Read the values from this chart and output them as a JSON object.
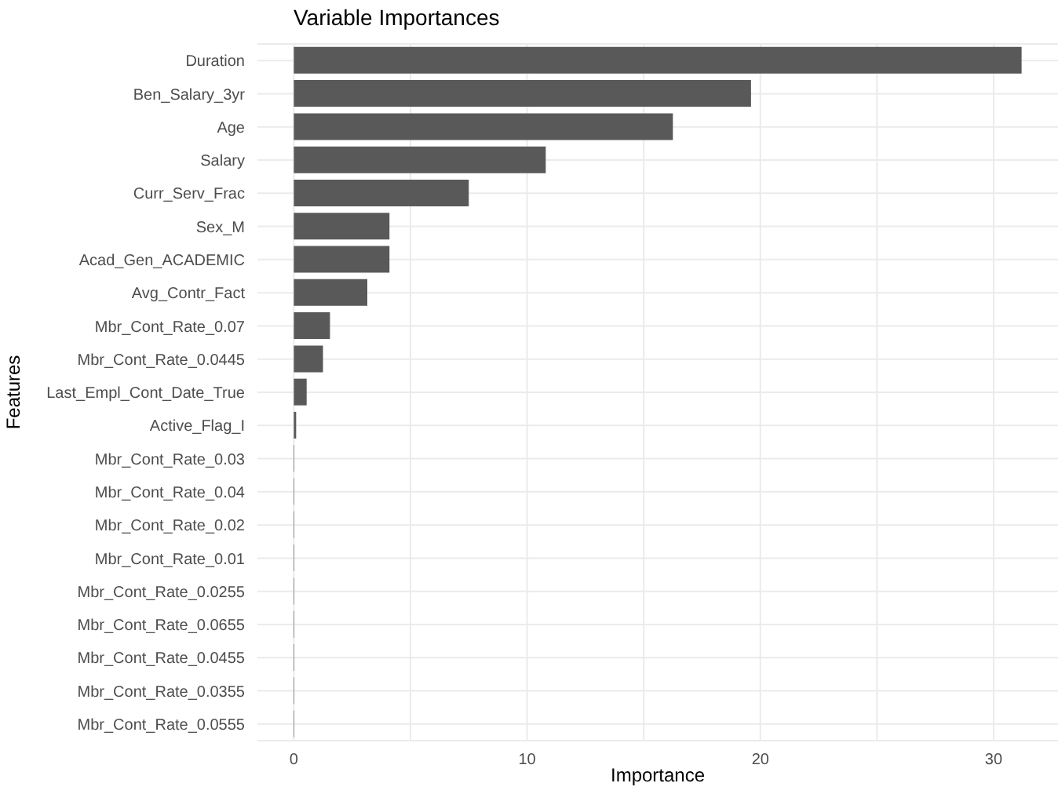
{
  "chart_data": {
    "type": "bar",
    "orientation": "horizontal",
    "title": "Variable Importances",
    "xlabel": "Importance",
    "ylabel": "Features",
    "categories": [
      "Duration",
      "Ben_Salary_3yr",
      "Age",
      "Salary",
      "Curr_Serv_Frac",
      "Sex_M",
      "Acad_Gen_ACADEMIC",
      "Avg_Contr_Fact",
      "Mbr_Cont_Rate_0.07",
      "Mbr_Cont_Rate_0.0445",
      "Last_Empl_Cont_Date_True",
      "Active_Flag_I",
      "Mbr_Cont_Rate_0.03",
      "Mbr_Cont_Rate_0.04",
      "Mbr_Cont_Rate_0.02",
      "Mbr_Cont_Rate_0.01",
      "Mbr_Cont_Rate_0.0255",
      "Mbr_Cont_Rate_0.0655",
      "Mbr_Cont_Rate_0.0455",
      "Mbr_Cont_Rate_0.0355",
      "Mbr_Cont_Rate_0.0555"
    ],
    "values": [
      31.2,
      19.6,
      16.25,
      10.8,
      7.5,
      4.1,
      4.1,
      3.15,
      1.55,
      1.25,
      0.55,
      0.1,
      0.02,
      0.02,
      0.02,
      0.02,
      0.02,
      0.02,
      0.02,
      0.02,
      0.02
    ],
    "color": "#595959",
    "xlim": [
      -1.56,
      32.76
    ],
    "xticks": [
      0,
      {
        "value": 5,
        "label": null
      },
      10,
      {
        "value": 15,
        "label": null
      },
      20,
      {
        "value": 25,
        "label": null
      },
      30
    ],
    "grid": true,
    "legend": false
  }
}
